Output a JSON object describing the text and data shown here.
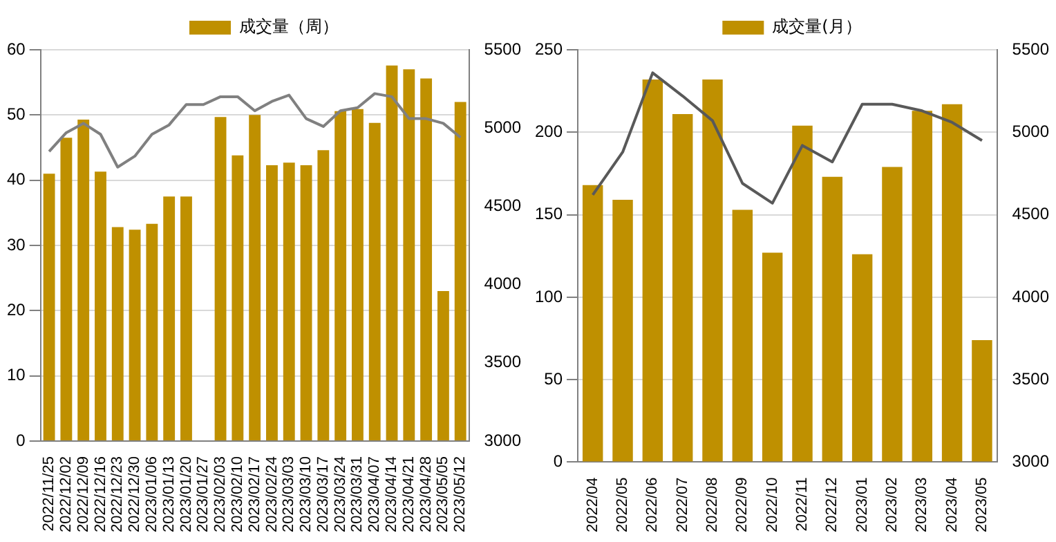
{
  "chart_data": [
    {
      "type": "bar",
      "categories": [
        "2022/11/25",
        "2022/12/02",
        "2022/12/09",
        "2022/12/16",
        "2022/12/23",
        "2022/12/30",
        "2023/01/06",
        "2023/01/13",
        "2023/01/20",
        "2023/01/27",
        "2023/02/03",
        "2023/02/10",
        "2023/02/17",
        "2023/02/24",
        "2023/03/03",
        "2023/03/10",
        "2023/03/17",
        "2023/03/24",
        "2023/03/31",
        "2023/04/07",
        "2023/04/14",
        "2023/04/21",
        "2023/04/28",
        "2023/05/05",
        "2023/05/12"
      ],
      "series": [
        {
          "name": "成交量（周）",
          "color": "#bf9000",
          "values": [
            41,
            46.5,
            49.3,
            41.3,
            32.8,
            32.4,
            33.3,
            37.5,
            37.5,
            null,
            49.7,
            43.8,
            50,
            42.3,
            42.7,
            42.3,
            44.6,
            50.6,
            50.9,
            48.8,
            57.6,
            57,
            55.6,
            23,
            52
          ]
        },
        {
          "type": "line",
          "color": "#808080",
          "axis": "y2",
          "values": [
            4850,
            4970,
            5030,
            4960,
            4750,
            4820,
            4960,
            5020,
            5150,
            5150,
            5200,
            5200,
            5110,
            5170,
            5210,
            5060,
            5010,
            5110,
            5130,
            5220,
            5200,
            5060,
            5060,
            5030,
            4940
          ]
        }
      ],
      "ylim": [
        0,
        60
      ],
      "yticks": [
        0,
        10,
        20,
        30,
        40,
        50,
        60
      ],
      "y2lim": [
        3000,
        5500
      ],
      "y2ticks": [
        3000,
        3500,
        4000,
        4500,
        5000,
        5500
      ],
      "grid": "y",
      "legend": "top"
    },
    {
      "type": "bar",
      "categories": [
        "2022/04",
        "2022/05",
        "2022/06",
        "2022/07",
        "2022/08",
        "2022/09",
        "2022/10",
        "2022/11",
        "2022/12",
        "2023/01",
        "2023/02",
        "2023/03",
        "2023/04",
        "2023/05"
      ],
      "series": [
        {
          "name": "成交量(月）",
          "color": "#bf9000",
          "values": [
            168,
            159,
            232,
            211,
            232,
            153,
            127,
            204,
            173,
            126,
            179,
            213,
            217,
            74
          ]
        },
        {
          "type": "line",
          "color": "#595959",
          "axis": "y2",
          "values": [
            4620,
            4880,
            5360,
            5220,
            5070,
            4690,
            4570,
            4920,
            4820,
            5170,
            5170,
            5130,
            5060,
            4950
          ]
        }
      ],
      "ylim": [
        0,
        250
      ],
      "yticks": [
        0,
        50,
        100,
        150,
        200,
        250
      ],
      "y2lim": [
        3000,
        5500
      ],
      "y2ticks": [
        3000,
        3500,
        4000,
        4500,
        5000,
        5500
      ],
      "grid": "y",
      "legend": "top"
    }
  ]
}
